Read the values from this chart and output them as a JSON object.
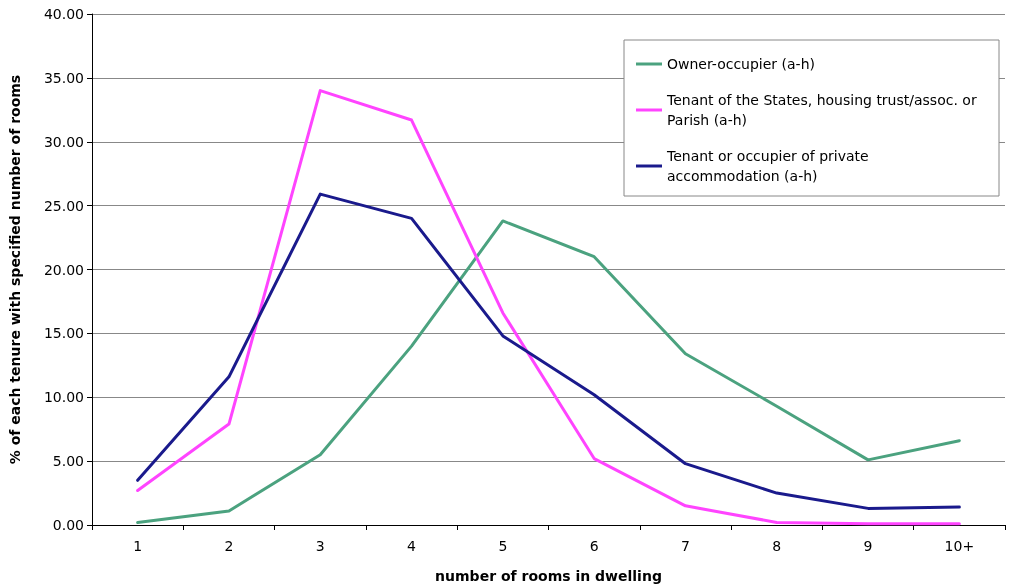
{
  "chart_data": {
    "type": "line",
    "xlabel": "number of rooms in dwelling",
    "ylabel": "% of each tenure with specified number of rooms",
    "categories": [
      "1",
      "2",
      "3",
      "4",
      "5",
      "6",
      "7",
      "8",
      "9",
      "10+"
    ],
    "series": [
      {
        "name": "Owner-occupier (a-h)",
        "color": "#4ba27f",
        "values": [
          0.2,
          1.1,
          5.5,
          14.0,
          23.8,
          21.0,
          13.4,
          9.3,
          5.1,
          6.6
        ]
      },
      {
        "name": "Tenant of the States, housing trust/assoc. or Parish (a-h)",
        "color": "#ff44ff",
        "values": [
          2.7,
          7.9,
          34.0,
          31.7,
          16.6,
          5.2,
          1.5,
          0.2,
          0.1,
          0.1
        ]
      },
      {
        "name": "Tenant or occupier of private accommodation (a-h)",
        "color": "#1a1a8c",
        "values": [
          3.5,
          11.6,
          25.9,
          24.0,
          14.8,
          10.2,
          4.8,
          2.5,
          1.3,
          1.4
        ]
      }
    ],
    "ylim": [
      0,
      40
    ],
    "yticks": [
      {
        "value": 0,
        "label": "0.00"
      },
      {
        "value": 5,
        "label": "5.00"
      },
      {
        "value": 10,
        "label": "10.00"
      },
      {
        "value": 15,
        "label": "15.00"
      },
      {
        "value": 20,
        "label": "20.00"
      },
      {
        "value": 25,
        "label": "25.00"
      },
      {
        "value": 30,
        "label": "30.00"
      },
      {
        "value": 35,
        "label": "35.00"
      },
      {
        "value": 40,
        "label": "40.00"
      }
    ],
    "grid": "y",
    "legend": "top right",
    "marker": "none",
    "line_style": "solid"
  }
}
